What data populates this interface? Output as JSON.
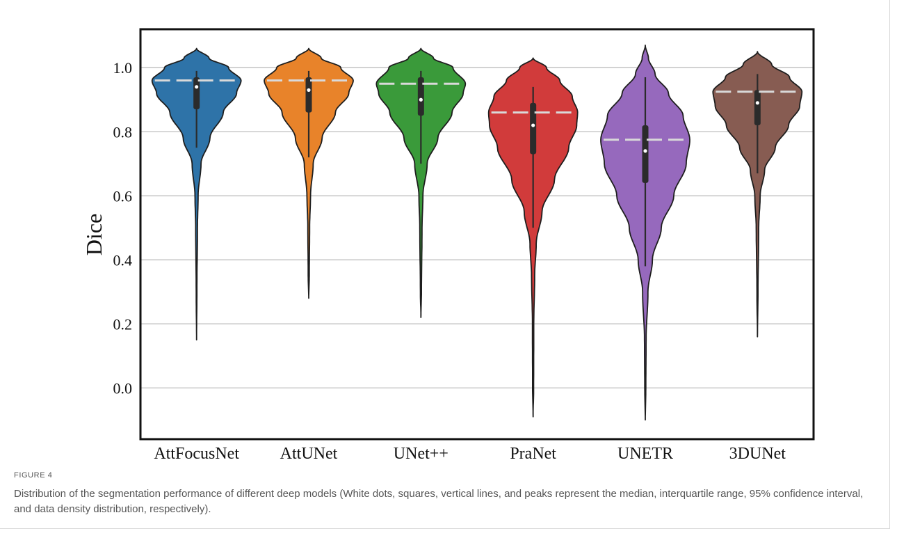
{
  "figure": {
    "label": "FIGURE 4",
    "caption": "Distribution of the segmentation performance of different deep models (White dots, squares, vertical lines, and peaks represent the median, interquartile range, 95% confidence interval, and data density distribution, respectively)."
  },
  "chart_data": {
    "type": "violin",
    "title": "",
    "xlabel": "",
    "ylabel": "Dice",
    "ylim": [
      -0.16,
      1.12
    ],
    "yticks": [
      0.0,
      0.2,
      0.4,
      0.6,
      0.8,
      1.0
    ],
    "ytick_labels": [
      "0.0",
      "0.2",
      "0.4",
      "0.6",
      "0.8",
      "1.0"
    ],
    "grid": "horizontal",
    "categories": [
      "AttFocusNet",
      "AttUNet",
      "UNet++",
      "PraNet",
      "UNETR",
      "3DUNet"
    ],
    "series": [
      {
        "category": "AttFocusNet",
        "color": "#2e73a8",
        "min": 0.15,
        "max": 1.06,
        "median": 0.94,
        "q1": 0.87,
        "q3": 0.97,
        "whisker_low": 0.75,
        "whisker_high": 0.99,
        "density_peak": 0.96,
        "profile": [
          [
            0.15,
            0.0
          ],
          [
            0.3,
            0.008
          ],
          [
            0.5,
            0.02
          ],
          [
            0.6,
            0.035
          ],
          [
            0.7,
            0.1
          ],
          [
            0.78,
            0.3
          ],
          [
            0.86,
            0.6
          ],
          [
            0.92,
            0.9
          ],
          [
            0.96,
            1.0
          ],
          [
            1.0,
            0.72
          ],
          [
            1.03,
            0.28
          ],
          [
            1.06,
            0.0
          ]
        ]
      },
      {
        "category": "AttUNet",
        "color": "#e8832a",
        "min": 0.28,
        "max": 1.06,
        "median": 0.93,
        "q1": 0.86,
        "q3": 0.97,
        "whisker_low": 0.72,
        "whisker_high": 0.99,
        "density_peak": 0.96,
        "profile": [
          [
            0.28,
            0.0
          ],
          [
            0.35,
            0.012
          ],
          [
            0.5,
            0.02
          ],
          [
            0.6,
            0.04
          ],
          [
            0.7,
            0.1
          ],
          [
            0.78,
            0.3
          ],
          [
            0.86,
            0.6
          ],
          [
            0.92,
            0.9
          ],
          [
            0.96,
            1.0
          ],
          [
            1.0,
            0.72
          ],
          [
            1.03,
            0.28
          ],
          [
            1.06,
            0.0
          ]
        ]
      },
      {
        "category": "UNet++",
        "color": "#3a9a3a",
        "min": 0.22,
        "max": 1.06,
        "median": 0.9,
        "q1": 0.85,
        "q3": 0.97,
        "whisker_low": 0.7,
        "whisker_high": 0.99,
        "density_peak": 0.95,
        "profile": [
          [
            0.22,
            0.0
          ],
          [
            0.3,
            0.012
          ],
          [
            0.5,
            0.025
          ],
          [
            0.6,
            0.045
          ],
          [
            0.7,
            0.14
          ],
          [
            0.78,
            0.38
          ],
          [
            0.86,
            0.7
          ],
          [
            0.92,
            0.95
          ],
          [
            0.95,
            1.0
          ],
          [
            1.0,
            0.72
          ],
          [
            1.03,
            0.28
          ],
          [
            1.06,
            0.0
          ]
        ]
      },
      {
        "category": "PraNet",
        "color": "#d13b3b",
        "min": -0.09,
        "max": 1.03,
        "median": 0.82,
        "q1": 0.73,
        "q3": 0.89,
        "whisker_low": 0.5,
        "whisker_high": 0.94,
        "density_peak": 0.86,
        "profile": [
          [
            -0.09,
            0.0
          ],
          [
            0.0,
            0.012
          ],
          [
            0.2,
            0.015
          ],
          [
            0.35,
            0.035
          ],
          [
            0.45,
            0.07
          ],
          [
            0.55,
            0.2
          ],
          [
            0.65,
            0.48
          ],
          [
            0.75,
            0.8
          ],
          [
            0.82,
            0.98
          ],
          [
            0.86,
            1.0
          ],
          [
            0.91,
            0.88
          ],
          [
            0.96,
            0.6
          ],
          [
            1.0,
            0.3
          ],
          [
            1.03,
            0.0
          ]
        ]
      },
      {
        "category": "UNETR",
        "color": "#9669bd",
        "min": -0.1,
        "max": 1.07,
        "median": 0.74,
        "q1": 0.64,
        "q3": 0.82,
        "whisker_low": 0.38,
        "whisker_high": 0.97,
        "density_peak": 0.775,
        "profile": [
          [
            -0.1,
            0.0
          ],
          [
            0.0,
            0.012
          ],
          [
            0.15,
            0.018
          ],
          [
            0.3,
            0.06
          ],
          [
            0.4,
            0.16
          ],
          [
            0.5,
            0.36
          ],
          [
            0.6,
            0.64
          ],
          [
            0.7,
            0.92
          ],
          [
            0.775,
            1.0
          ],
          [
            0.85,
            0.85
          ],
          [
            0.92,
            0.52
          ],
          [
            0.98,
            0.22
          ],
          [
            1.03,
            0.07
          ],
          [
            1.07,
            0.0
          ]
        ]
      },
      {
        "category": "3DUNet",
        "color": "#875c52",
        "min": 0.16,
        "max": 1.05,
        "median": 0.89,
        "q1": 0.82,
        "q3": 0.93,
        "whisker_low": 0.67,
        "whisker_high": 0.98,
        "density_peak": 0.925,
        "profile": [
          [
            0.16,
            0.0
          ],
          [
            0.3,
            0.012
          ],
          [
            0.5,
            0.028
          ],
          [
            0.6,
            0.06
          ],
          [
            0.68,
            0.16
          ],
          [
            0.75,
            0.4
          ],
          [
            0.82,
            0.7
          ],
          [
            0.88,
            0.95
          ],
          [
            0.925,
            1.0
          ],
          [
            0.97,
            0.72
          ],
          [
            1.01,
            0.32
          ],
          [
            1.05,
            0.0
          ]
        ]
      }
    ]
  }
}
